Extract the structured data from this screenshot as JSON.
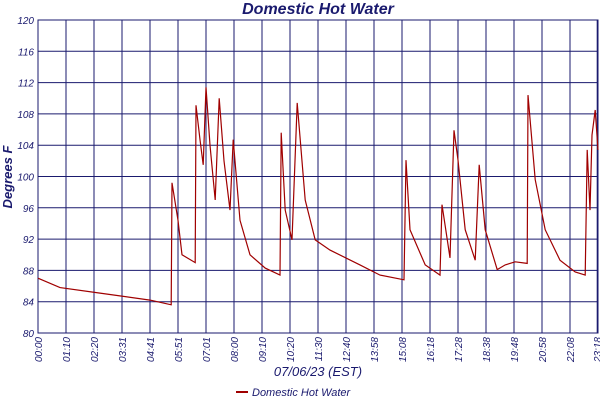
{
  "chart_data": {
    "type": "line",
    "title": "Domestic Hot Water",
    "y_label": "Degrees F",
    "x_label": "07/06/23 (EST)",
    "xlim": [
      0,
      1400
    ],
    "xticks": [
      {
        "value": 0,
        "label": "00:00"
      },
      {
        "value": 70,
        "label": "01:10"
      },
      {
        "value": 140,
        "label": "02:20"
      },
      {
        "value": 210,
        "label": "03:31"
      },
      {
        "value": 280,
        "label": "04:41"
      },
      {
        "value": 350,
        "label": "05:51"
      },
      {
        "value": 420,
        "label": "07:01"
      },
      {
        "value": 490,
        "label": "08:00"
      },
      {
        "value": 560,
        "label": "09:10"
      },
      {
        "value": 630,
        "label": "10:20"
      },
      {
        "value": 700,
        "label": "11:30"
      },
      {
        "value": 770,
        "label": "12:40"
      },
      {
        "value": 840,
        "label": "13:58"
      },
      {
        "value": 910,
        "label": "15:08"
      },
      {
        "value": 980,
        "label": "16:18"
      },
      {
        "value": 1050,
        "label": "17:28"
      },
      {
        "value": 1120,
        "label": "18:38"
      },
      {
        "value": 1190,
        "label": "19:48"
      },
      {
        "value": 1260,
        "label": "20:58"
      },
      {
        "value": 1330,
        "label": "22:08"
      },
      {
        "value": 1398,
        "label": "23:18"
      }
    ],
    "ylim": [
      80,
      120
    ],
    "yticks": [
      80,
      84,
      88,
      92,
      96,
      100,
      104,
      108,
      112,
      116,
      120
    ],
    "grid": true,
    "legend": "bottom",
    "x": [
      0,
      55,
      155,
      280,
      333,
      335,
      350,
      360,
      393,
      395,
      405,
      413,
      420,
      430,
      443,
      453,
      465,
      480,
      488,
      505,
      530,
      568,
      605,
      608,
      618,
      635,
      648,
      668,
      693,
      730,
      805,
      855,
      915,
      920,
      930,
      968,
      1005,
      1010,
      1030,
      1040,
      1050,
      1068,
      1093,
      1103,
      1118,
      1148,
      1168,
      1193,
      1223,
      1225,
      1243,
      1268,
      1305,
      1343,
      1368,
      1373,
      1380,
      1385,
      1393,
      1400
    ],
    "series": [
      {
        "name": "Domestic Hot Water",
        "color": "#a00000",
        "values": [
          87.0,
          85.8,
          85.1,
          84.2,
          83.6,
          99.2,
          94.4,
          90,
          89,
          109.1,
          104.7,
          101.5,
          111.4,
          104,
          97,
          110,
          102,
          95.7,
          104.7,
          94.4,
          90,
          88.3,
          87.4,
          105.6,
          95.7,
          91.9,
          109.4,
          97,
          91.9,
          90.6,
          88.7,
          87.4,
          86.8,
          102.1,
          93.2,
          88.7,
          87.4,
          96.4,
          89.6,
          105.9,
          102.1,
          93.2,
          89.3,
          101.5,
          93.2,
          88.1,
          88.7,
          89.1,
          88.9,
          110.4,
          99.6,
          93.2,
          89.3,
          87.8,
          87.4,
          103.4,
          95.7,
          105.3,
          108.5,
          103.4
        ]
      }
    ]
  }
}
